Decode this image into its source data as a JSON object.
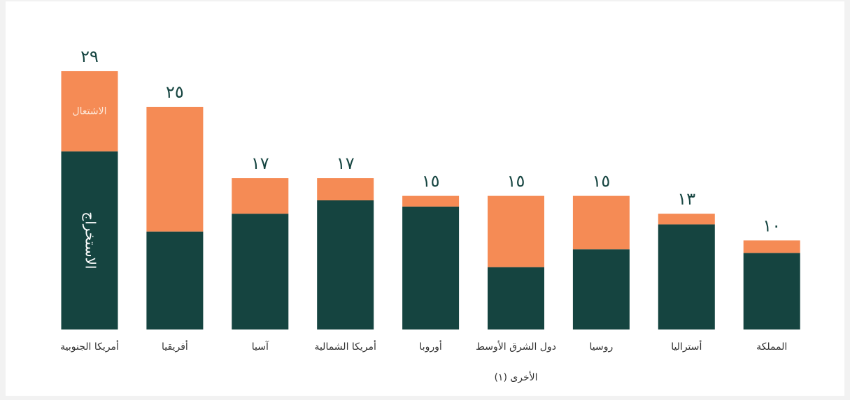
{
  "chart_data": {
    "type": "stacked_bar",
    "categories": [
      "أمريكا الجنوبية",
      "أفريقيا",
      "آسيا",
      "أمريكا الشمالية",
      "أوروبا",
      "دول الشرق الأوسط الأخرى (١)",
      "روسيا",
      "أستراليا",
      "المملكة"
    ],
    "series": [
      {
        "name": "الاستخراج",
        "color": "#154440",
        "values": [
          20,
          11,
          13,
          14.5,
          13.8,
          7,
          9,
          11.8,
          8.6
        ]
      },
      {
        "name": "الاشتعال",
        "color": "#f58b55",
        "values": [
          9,
          14,
          4,
          2.5,
          1.2,
          8,
          6,
          1.2,
          1.4
        ]
      }
    ],
    "totals": [
      29,
      25,
      17,
      17,
      15,
      15,
      15,
      13,
      10
    ],
    "total_labels": [
      "٢٩",
      "٢٥",
      "١٧",
      "١٧",
      "١٥",
      "١٥",
      "١٥",
      "١٣",
      "١٠"
    ]
  }
}
